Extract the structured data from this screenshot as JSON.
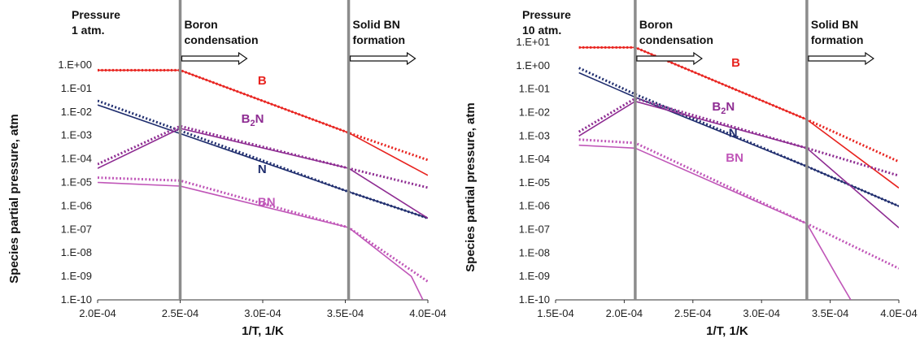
{
  "chart_data": [
    {
      "type": "line",
      "xlabel": "1/T, 1/K",
      "ylabel": "Species partial pressure, atm",
      "xlim": [
        0.0002,
        0.0004
      ],
      "ylim": [
        1e-10,
        1
      ],
      "y_scale": "log",
      "x_ticks": [
        "2.0E-04",
        "2.5E-04",
        "3.0E-04",
        "3.5E-04",
        "4.0E-04"
      ],
      "x_tick_values": [
        0.0002,
        0.00025,
        0.0003,
        0.00035,
        0.0004
      ],
      "y_ticks": [
        "1.E-10",
        "1.E-09",
        "1.E-08",
        "1.E-07",
        "1.E-06",
        "1.E-05",
        "1.E-04",
        "1.E-03",
        "1.E-02",
        "1.E-01",
        "1.E+00"
      ],
      "grid": false,
      "pressure_note": [
        "Pressure",
        "1 atm."
      ],
      "regions": [
        {
          "x": 0.00025,
          "label": [
            "Boron",
            "condensation"
          ]
        },
        {
          "x": 0.000352,
          "label": [
            "Solid BN",
            "formation"
          ]
        }
      ],
      "series": [
        {
          "name": "B",
          "color": "#e8231f",
          "style": "solid",
          "x": [
            0.0002,
            0.00025,
            0.000352,
            0.0004
          ],
          "y": [
            0.6,
            0.6,
            0.0013,
            2e-05
          ]
        },
        {
          "name": "B",
          "color": "#e8231f",
          "style": "dotted",
          "x": [
            0.0002,
            0.00025,
            0.000352,
            0.0004
          ],
          "y": [
            0.6,
            0.6,
            0.0013,
            9e-05
          ]
        },
        {
          "name": "N",
          "color": "#1f2d6e",
          "style": "solid",
          "x": [
            0.0002,
            0.00025,
            0.000352,
            0.0004
          ],
          "y": [
            0.02,
            0.0012,
            4e-06,
            3e-07
          ]
        },
        {
          "name": "N",
          "color": "#1f2d6e",
          "style": "dotted",
          "x": [
            0.0002,
            0.00025,
            0.000352,
            0.0004
          ],
          "y": [
            0.03,
            0.0016,
            4e-06,
            3e-07
          ]
        },
        {
          "name": "B2N",
          "color": "#8e2c92",
          "style": "solid",
          "x": [
            0.0002,
            0.00025,
            0.000352,
            0.0004
          ],
          "y": [
            4e-05,
            0.002,
            4e-05,
            3e-07
          ]
        },
        {
          "name": "B2N",
          "color": "#8e2c92",
          "style": "dotted",
          "x": [
            0.0002,
            0.00025,
            0.000352,
            0.0004
          ],
          "y": [
            6e-05,
            0.0025,
            4e-05,
            6e-06
          ]
        },
        {
          "name": "BN",
          "color": "#c056b8",
          "style": "solid",
          "x": [
            0.0002,
            0.00025,
            0.000352,
            0.00039,
            0.000397
          ],
          "y": [
            1e-05,
            7e-06,
            1.2e-07,
            1e-09,
            1e-10
          ]
        },
        {
          "name": "BN",
          "color": "#c056b8",
          "style": "dotted",
          "x": [
            0.0002,
            0.00025,
            0.000352,
            0.0004
          ],
          "y": [
            1.6e-05,
            1.2e-05,
            1.2e-07,
            6e-10
          ]
        }
      ],
      "series_labels": [
        {
          "name": "B",
          "text": "B",
          "sub": "",
          "suffix": "",
          "color": "#e8231f",
          "x": 0.000297,
          "y": 0.15
        },
        {
          "name": "B2N",
          "text": "B",
          "sub": "2",
          "suffix": "N",
          "color": "#8e2c92",
          "x": 0.000287,
          "y": 0.0035
        },
        {
          "name": "N",
          "text": "N",
          "sub": "",
          "suffix": "",
          "color": "#1f2d6e",
          "x": 0.000297,
          "y": 2.5e-05
        },
        {
          "name": "BN",
          "text": "BN",
          "sub": "",
          "suffix": "",
          "color": "#c056b8",
          "x": 0.000297,
          "y": 1e-06
        }
      ]
    },
    {
      "type": "line",
      "xlabel": "1/T, 1/K",
      "ylabel": "Species partial pressure, atm",
      "xlim": [
        0.00015,
        0.0004
      ],
      "ylim": [
        1e-10,
        10
      ],
      "y_scale": "log",
      "x_ticks": [
        "1.5E-04",
        "2.0E-04",
        "2.5E-04",
        "3.0E-04",
        "3.5E-04",
        "4.0E-04"
      ],
      "x_tick_values": [
        0.00015,
        0.0002,
        0.00025,
        0.0003,
        0.00035,
        0.0004
      ],
      "y_ticks": [
        "1.E-10",
        "1.E-09",
        "1.E-08",
        "1.E-07",
        "1.E-06",
        "1.E-05",
        "1.E-04",
        "1.E-03",
        "1.E-02",
        "1.E-01",
        "1.E+00",
        "1.E+01"
      ],
      "grid": false,
      "pressure_note": [
        "Pressure",
        "10 atm."
      ],
      "regions": [
        {
          "x": 0.000208,
          "label": [
            "Boron",
            "condensation"
          ]
        },
        {
          "x": 0.000333,
          "label": [
            "Solid BN",
            "formation"
          ]
        }
      ],
      "series": [
        {
          "name": "B",
          "color": "#e8231f",
          "style": "solid",
          "x": [
            0.000167,
            0.000208,
            0.000333,
            0.0004
          ],
          "y": [
            6,
            6,
            0.005,
            6e-06
          ]
        },
        {
          "name": "B",
          "color": "#e8231f",
          "style": "dotted",
          "x": [
            0.000167,
            0.000208,
            0.000333,
            0.0004
          ],
          "y": [
            6,
            6,
            0.005,
            8e-05
          ]
        },
        {
          "name": "N",
          "color": "#1f2d6e",
          "style": "solid",
          "x": [
            0.000167,
            0.000208,
            0.000333,
            0.0004
          ],
          "y": [
            0.5,
            0.045,
            5e-05,
            1e-06
          ]
        },
        {
          "name": "N",
          "color": "#1f2d6e",
          "style": "dotted",
          "x": [
            0.000167,
            0.000208,
            0.000333,
            0.0004
          ],
          "y": [
            0.8,
            0.06,
            5e-05,
            1e-06
          ]
        },
        {
          "name": "B2N",
          "color": "#8e2c92",
          "style": "solid",
          "x": [
            0.000167,
            0.000208,
            0.000333,
            0.0004
          ],
          "y": [
            0.001,
            0.03,
            0.0003,
            1.2e-07
          ]
        },
        {
          "name": "B2N",
          "color": "#8e2c92",
          "style": "dotted",
          "x": [
            0.000167,
            0.000208,
            0.000333,
            0.0004
          ],
          "y": [
            0.0015,
            0.04,
            0.0003,
            2e-05
          ]
        },
        {
          "name": "BN",
          "color": "#c056b8",
          "style": "solid",
          "x": [
            0.000167,
            0.000208,
            0.000333,
            0.000355,
            0.000365
          ],
          "y": [
            0.0004,
            0.0003,
            1.8e-07,
            1e-09,
            1e-10
          ]
        },
        {
          "name": "BN",
          "color": "#c056b8",
          "style": "dotted",
          "x": [
            0.000167,
            0.000208,
            0.000333,
            0.0004
          ],
          "y": [
            0.0007,
            0.0005,
            1.8e-07,
            2.2e-09
          ]
        }
      ],
      "series_labels": [
        {
          "name": "B",
          "text": "B",
          "sub": "",
          "suffix": "",
          "color": "#e8231f",
          "x": 0.000278,
          "y": 0.9
        },
        {
          "name": "B2N",
          "text": "B",
          "sub": "2",
          "suffix": "N",
          "color": "#8e2c92",
          "x": 0.000264,
          "y": 0.012
        },
        {
          "name": "N",
          "text": "N",
          "sub": "",
          "suffix": "",
          "color": "#1f2d6e",
          "x": 0.000276,
          "y": 0.0009
        },
        {
          "name": "BN",
          "text": "BN",
          "sub": "",
          "suffix": "",
          "color": "#c056b8",
          "x": 0.000274,
          "y": 8e-05
        }
      ]
    }
  ]
}
